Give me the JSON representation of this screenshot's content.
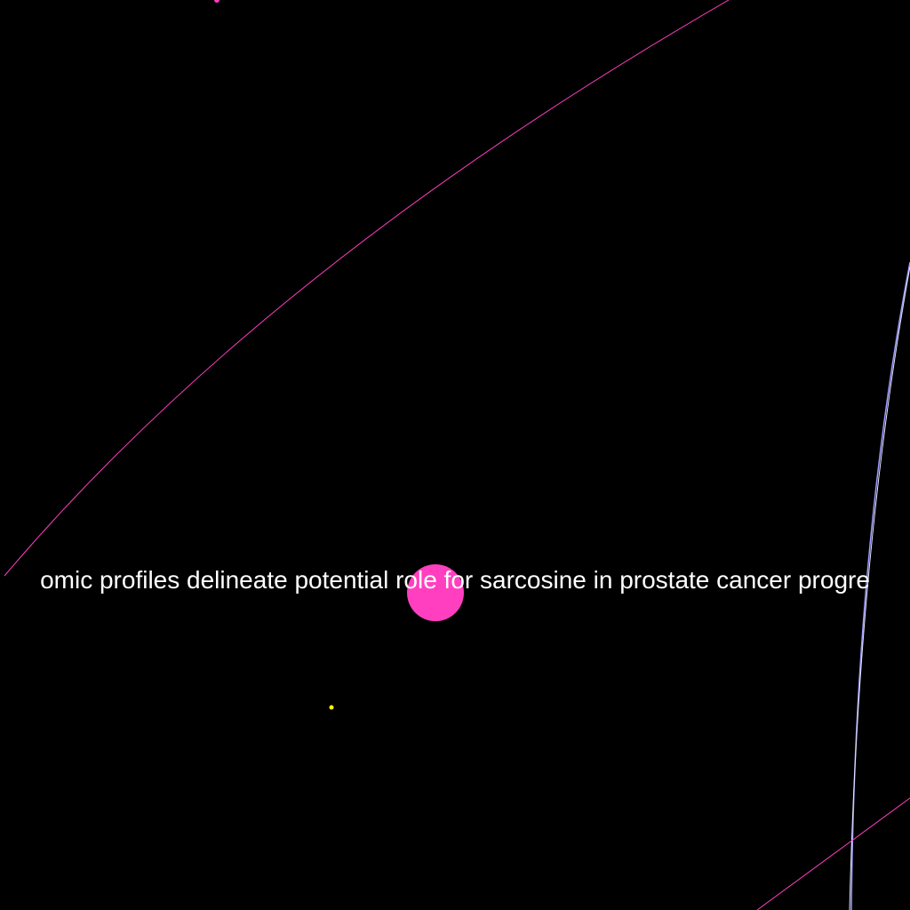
{
  "graph": {
    "background": "#000000",
    "focus_node": {
      "label": "omic profiles delineate potential role for sarcosine in prostate cancer progre",
      "color": "#ff3fbf",
      "label_color": "#ffffff"
    },
    "small_node": {
      "color": "#ffff00"
    },
    "top_node": {
      "color": "#ff3fbf"
    },
    "edge_colors": {
      "pink": "#ff3fbf",
      "blue": "#9c9cff",
      "white": "#e6e6ff"
    }
  }
}
